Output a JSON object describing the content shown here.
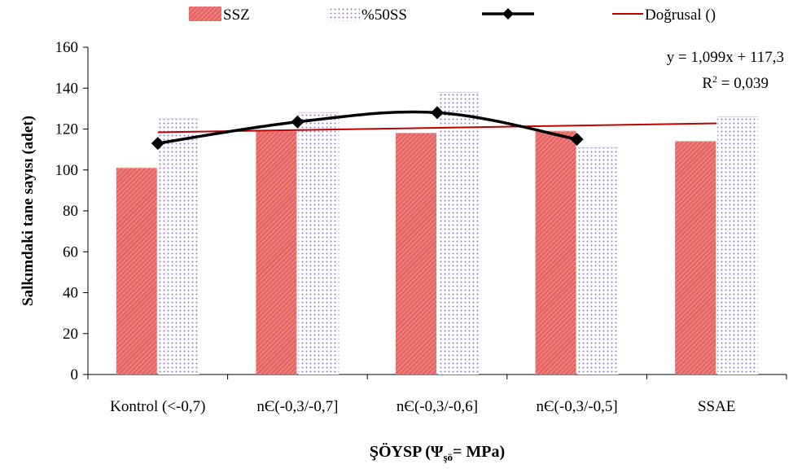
{
  "chart_data": {
    "type": "bar",
    "categories": [
      "Kontrol (<-0,7)",
      "nЄ(-0,3/-0,7]",
      "nЄ(-0,3/-0,6]",
      "nЄ(-0,3/-0,5]",
      "SSAE"
    ],
    "series": [
      {
        "name": "SSZ",
        "kind": "bar",
        "values": [
          101,
          119,
          118,
          119,
          114
        ],
        "color": "#e86060"
      },
      {
        "name": "%50SS",
        "kind": "bar",
        "values": [
          125,
          128,
          138,
          111,
          126
        ],
        "color": "#c8b0e0"
      },
      {
        "name": "",
        "kind": "line",
        "values": [
          113,
          123.5,
          128,
          115,
          null
        ],
        "color": "#000000"
      },
      {
        "name": "Doğrusal ()",
        "kind": "trendline",
        "values": [
          118.4,
          119.5,
          120.6,
          121.7,
          122.8
        ],
        "color": "#c00000"
      }
    ],
    "ylabel": "Salkımdaki tane sayısı (adet)",
    "xlabel": "ŞÖYSP (Ψ",
    "xlabel_sub": "şö",
    "xlabel_tail": "= MPa)",
    "ylim": [
      0,
      160
    ],
    "yticks": [
      "0",
      "20",
      "40",
      "60",
      "80",
      "100",
      "120",
      "140",
      "160"
    ],
    "annotation_eq": "y = 1,099x + 117,3",
    "annotation_r2_prefix": "R",
    "annotation_r2_sup": "2",
    "annotation_r2_suffix": " = 0,039",
    "legend_position": "top",
    "grid": false
  }
}
